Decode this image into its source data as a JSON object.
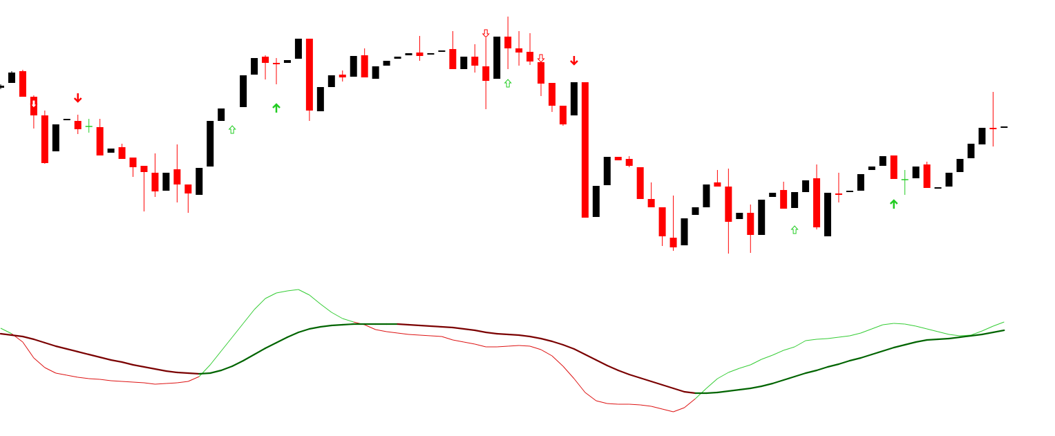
{
  "chart_data": [
    {
      "type": "candlestick",
      "ylim": [
        0,
        631
      ],
      "up_color": "#000000",
      "down_color": "#ff0000",
      "doji_color": "#22cc22",
      "open": [
        504,
        511,
        528,
        491,
        464,
        412,
        457,
        456,
        448,
        447,
        410,
        418,
        403,
        391,
        381,
        355,
        386,
        364,
        349,
        390,
        456,
        null,
        476,
        523,
        549,
        540,
        540,
        546,
        575,
        470,
        505,
        523,
        520,
        551,
        517,
        536,
        546,
        551,
        555,
        552,
        556,
        560,
        531,
        549,
        535,
        517,
        578,
        561,
        556,
        541,
        511,
        478,
        464,
        512,
        317,
        363,
        404,
        401,
        389,
        343,
        331,
        287,
        276,
        320,
        331,
        367,
        361,
        314,
        323,
        291,
        346,
        356,
        330,
        353,
        373,
        289,
        351,
        353,
        355,
        385,
        391,
        406,
        371,
        373,
        393,
        358,
        361,
        382,
        402,
        422,
        446,
        446
      ],
      "high": [
        509,
        528,
        530,
        493,
        471,
        451,
        459,
        465,
        459,
        459,
        416,
        423,
        403,
        391,
        409,
        381,
        422,
        364,
        388,
        456,
        474,
        null,
        522,
        547,
        551,
        547,
        544,
        575,
        575,
        505,
        522,
        529,
        550,
        561,
        535,
        543,
        549,
        554,
        579,
        554,
        558,
        586,
        549,
        567,
        576,
        578,
        607,
        586,
        583,
        541,
        511,
        478,
        512,
        512,
        362,
        404,
        404,
        405,
        389,
        367,
        331,
        348,
        315,
        331,
        364,
        385,
        387,
        323,
        335,
        342,
        352,
        368,
        353,
        370,
        393,
        352,
        381,
        355,
        379,
        390,
        405,
        406,
        385,
        390,
        397,
        360,
        381,
        401,
        423,
        446,
        498,
        448
      ],
      "low": [
        502,
        511,
        491,
        445,
        394,
        412,
        457,
        437,
        439,
        406,
        410,
        401,
        375,
        325,
        346,
        355,
        338,
        323,
        349,
        390,
        456,
        null,
        476,
        523,
        516,
        509,
        540,
        546,
        456,
        470,
        505,
        513,
        520,
        519,
        517,
        536,
        546,
        551,
        543,
        552,
        556,
        531,
        531,
        526,
        473,
        517,
        531,
        536,
        537,
        492,
        469,
        449,
        464,
        316,
        317,
        363,
        399,
        389,
        343,
        331,
        275,
        268,
        276,
        320,
        331,
        361,
        264,
        314,
        265,
        291,
        346,
        329,
        330,
        353,
        299,
        289,
        338,
        353,
        355,
        385,
        391,
        372,
        349,
        373,
        359,
        358,
        361,
        382,
        402,
        422,
        419,
        446
      ],
      "close": [
        507,
        526,
        491,
        464,
        395,
        451,
        459,
        444,
        448,
        406,
        416,
        401,
        389,
        382,
        354,
        381,
        364,
        351,
        388,
        456,
        474,
        null,
        522,
        547,
        540,
        539,
        544,
        575,
        471,
        505,
        522,
        519,
        550,
        519,
        535,
        543,
        549,
        554,
        550,
        554,
        558,
        531,
        549,
        536,
        514,
        578,
        561,
        555,
        542,
        510,
        478,
        451,
        512,
        316,
        362,
        404,
        399,
        391,
        343,
        331,
        289,
        273,
        315,
        331,
        364,
        361,
        310,
        323,
        291,
        342,
        352,
        329,
        353,
        370,
        302,
        352,
        350,
        355,
        379,
        390,
        405,
        372,
        371,
        390,
        359,
        360,
        381,
        401,
        423,
        446,
        444,
        448
      ],
      "signals": [
        {
          "index": 3,
          "value": 481,
          "direction": "down",
          "style": "hollow"
        },
        {
          "index": 7,
          "value": 490,
          "direction": "down",
          "style": "solid"
        },
        {
          "index": 21,
          "value": 443,
          "direction": "up",
          "style": "hollow"
        },
        {
          "index": 25,
          "value": 474,
          "direction": "up",
          "style": "solid"
        },
        {
          "index": 44,
          "value": 583,
          "direction": "down",
          "style": "hollow"
        },
        {
          "index": 46,
          "value": 510,
          "direction": "up",
          "style": "hollow"
        },
        {
          "index": 49,
          "value": 547,
          "direction": "down",
          "style": "hollow"
        },
        {
          "index": 52,
          "value": 544,
          "direction": "down",
          "style": "solid"
        },
        {
          "index": 72,
          "value": 298,
          "direction": "up",
          "style": "hollow"
        },
        {
          "index": 81,
          "value": 335,
          "direction": "up",
          "style": "solid"
        }
      ],
      "signal_up_color": "#22cc22",
      "signal_down_color": "#ff0000"
    },
    {
      "type": "line",
      "ylim": [
        0,
        231
      ],
      "fast": [
        156,
        148,
        136,
        113,
        99,
        91,
        88,
        85,
        83,
        82,
        80,
        79,
        78,
        77,
        75,
        76,
        77,
        79,
        86,
        103,
        123,
        143,
        163,
        183,
        199,
        207,
        210,
        212,
        204,
        191,
        179,
        170,
        165,
        161,
        154,
        151,
        149,
        147,
        146,
        145,
        144,
        139,
        136,
        133,
        129,
        129,
        130,
        131,
        130,
        125,
        116,
        101,
        83,
        63,
        51,
        47,
        46,
        46,
        45,
        43,
        39,
        35,
        41,
        54,
        69,
        83,
        92,
        98,
        103,
        111,
        117,
        124,
        129,
        138,
        140,
        141,
        143,
        145,
        149,
        155,
        161,
        163,
        162,
        159,
        155,
        151,
        147,
        145,
        146,
        152,
        159,
        165
      ],
      "slow": [
        148,
        146,
        144,
        140,
        135,
        130,
        126,
        122,
        118,
        114,
        110,
        107,
        103,
        100,
        97,
        94,
        92,
        91,
        90,
        91,
        95,
        101,
        109,
        118,
        127,
        135,
        143,
        150,
        155,
        158,
        160,
        161,
        162,
        162,
        162,
        162,
        162,
        161,
        160,
        159,
        158,
        157,
        155,
        153,
        150,
        148,
        147,
        146,
        144,
        141,
        137,
        132,
        126,
        118,
        110,
        102,
        95,
        89,
        84,
        79,
        74,
        69,
        64,
        62,
        62,
        63,
        65,
        67,
        69,
        72,
        76,
        81,
        86,
        91,
        95,
        100,
        104,
        109,
        113,
        118,
        123,
        128,
        132,
        136,
        139,
        140,
        141,
        143,
        145,
        147,
        150,
        153
      ],
      "fast_above_color": "#33cc33",
      "fast_below_color": "#dd1111",
      "slow_rising_color": "#006400",
      "slow_falling_color": "#7a0000"
    }
  ]
}
